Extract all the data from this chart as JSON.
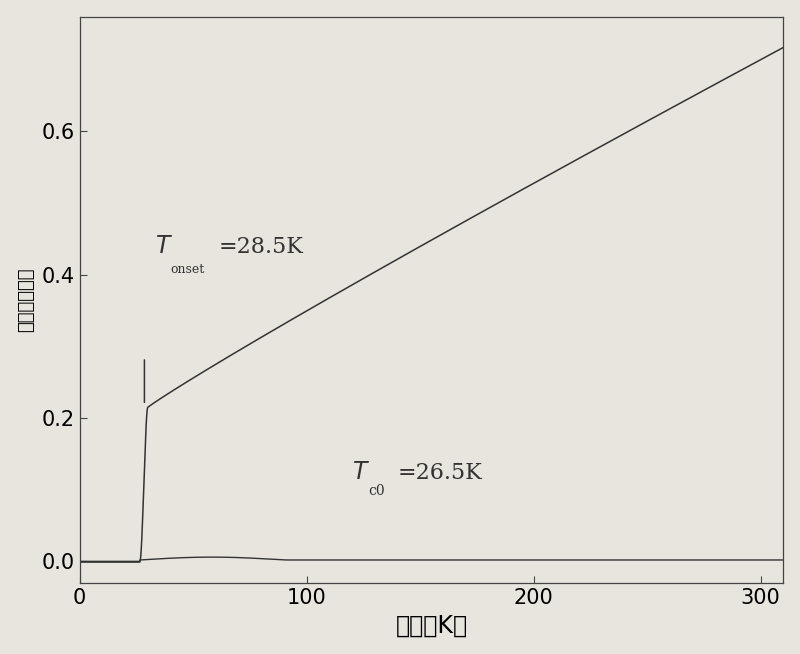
{
  "title": "",
  "xlabel": "温度（K）",
  "ylabel": "（电阔）阔度",
  "xlim": [
    0,
    310
  ],
  "ylim": [
    -0.03,
    0.76
  ],
  "xticks": [
    0,
    100,
    200,
    300
  ],
  "yticks": [
    0.0,
    0.2,
    0.4,
    0.6
  ],
  "T_onset": 28.5,
  "T_c0": 26.5,
  "line_color": "#333333",
  "bg_color": "#e8e5df",
  "xlabel_fontsize": 17,
  "ylabel_fontsize": 13,
  "tick_fontsize": 15,
  "annot_fontsize": 17
}
